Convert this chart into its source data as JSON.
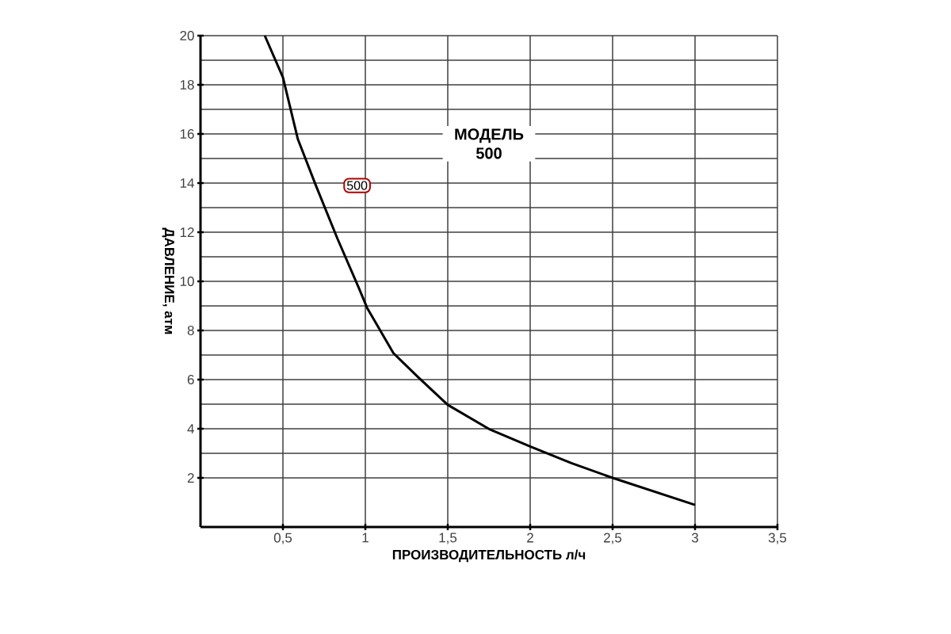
{
  "chart_data": {
    "type": "line",
    "xlabel": "ПРОИЗВОДИТЕЛЬНОСТЬ л/ч",
    "ylabel": "ДАВЛЕНИЕ, атм",
    "annotations": [
      "МОДЕЛЬ 500",
      {
        "text": "500",
        "x": 0.95,
        "y": 13.9
      }
    ],
    "series": [
      {
        "color": "#000000",
        "x": [
          0.39,
          0.5,
          0.59,
          0.7,
          0.83,
          0.96,
          1.01,
          1.17,
          1.32,
          1.5,
          1.75,
          2.0,
          2.25,
          2.5,
          3.0
        ],
        "values": [
          20.0,
          18.3,
          15.8,
          13.9,
          11.75,
          9.74,
          8.93,
          7.08,
          6.1,
          4.97,
          3.99,
          3.28,
          2.6,
          2.0,
          0.9
        ]
      }
    ],
    "xlim": [
      0,
      3.5
    ],
    "ylim": [
      0,
      20
    ],
    "xticks": [
      {
        "value": 0.5,
        "label": "0,5"
      },
      1,
      {
        "value": 1.5,
        "label": "1,5"
      },
      2,
      {
        "value": 2.5,
        "label": "2,5"
      },
      3,
      {
        "value": 3.5,
        "label": "3,5"
      }
    ],
    "yticks": [
      2,
      4,
      6,
      8,
      10,
      12,
      14,
      16,
      18,
      20
    ],
    "grid": true
  }
}
